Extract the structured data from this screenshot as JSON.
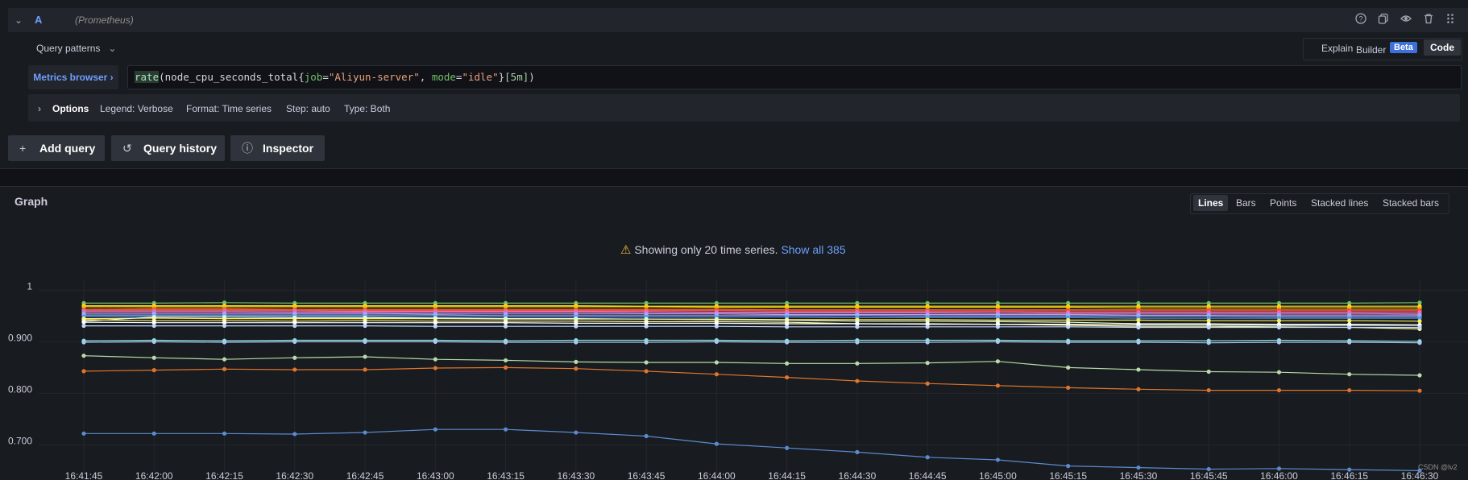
{
  "query": {
    "letter": "A",
    "datasource": "(Prometheus)",
    "row_icons": [
      "help-icon",
      "duplicate-icon",
      "eye-icon",
      "trash-icon",
      "drag-handle-icon"
    ],
    "patterns_label": "Query patterns",
    "mode": {
      "explain": "Explain",
      "builder": "Builder",
      "beta": "Beta",
      "code": "Code"
    },
    "metrics_browser": "Metrics browser",
    "expr": {
      "fn": "rate",
      "open": "(",
      "metric": "node_cpu_seconds_total",
      "brace_open": "{",
      "label1": "job",
      "eq1": "=",
      "val1": "\"Aliyun-server\"",
      "comma": ", ",
      "label2": "mode",
      "eq2": "=",
      "val2": "\"idle\"",
      "brace_close": "}",
      "range": "[5m]",
      "close": ")"
    },
    "options": {
      "title": "Options",
      "legend": "Legend: Verbose",
      "format": "Format: Time series",
      "step": "Step: auto",
      "type": "Type: Both"
    }
  },
  "buttons": {
    "add_query": "Add query",
    "query_history": "Query history",
    "inspector": "Inspector"
  },
  "graph": {
    "title": "Graph",
    "styles": [
      "Lines",
      "Bars",
      "Points",
      "Stacked lines",
      "Stacked bars"
    ],
    "selected_style": "Lines",
    "warning_text": "Showing only 20 time series.",
    "show_all": "Show all 385"
  },
  "watermark": "CSDN @lv2",
  "chart_data": {
    "type": "line",
    "x": [
      "16:41:45",
      "16:42:00",
      "16:42:15",
      "16:42:30",
      "16:42:45",
      "16:43:00",
      "16:43:15",
      "16:43:30",
      "16:43:45",
      "16:44:00",
      "16:44:15",
      "16:44:30",
      "16:44:45",
      "16:45:00",
      "16:45:15",
      "16:45:30",
      "16:45:45",
      "16:46:00",
      "16:46:15",
      "16:46:30"
    ],
    "y_ticks": [
      "1",
      "0.900",
      "0.800",
      "0.700"
    ],
    "ylim": [
      0.66,
      1.01
    ],
    "grid": true,
    "series": [
      {
        "color": "#73bf69",
        "values": [
          0.975,
          0.975,
          0.976,
          0.975,
          0.975,
          0.975,
          0.975,
          0.975,
          0.975,
          0.975,
          0.975,
          0.975,
          0.975,
          0.975,
          0.975,
          0.975,
          0.975,
          0.975,
          0.975,
          0.976
        ]
      },
      {
        "color": "#fade2a",
        "values": [
          0.97,
          0.97,
          0.97,
          0.97,
          0.97,
          0.97,
          0.97,
          0.97,
          0.969,
          0.969,
          0.969,
          0.969,
          0.969,
          0.969,
          0.969,
          0.969,
          0.969,
          0.969,
          0.969,
          0.969
        ]
      },
      {
        "color": "#f2cc0c",
        "values": [
          0.968,
          0.968,
          0.968,
          0.968,
          0.968,
          0.968,
          0.968,
          0.968,
          0.968,
          0.967,
          0.967,
          0.967,
          0.967,
          0.967,
          0.967,
          0.966,
          0.966,
          0.966,
          0.966,
          0.966
        ]
      },
      {
        "color": "#ff780a",
        "values": [
          0.963,
          0.964,
          0.964,
          0.963,
          0.963,
          0.963,
          0.963,
          0.963,
          0.963,
          0.963,
          0.962,
          0.962,
          0.962,
          0.962,
          0.962,
          0.962,
          0.962,
          0.962,
          0.962,
          0.962
        ]
      },
      {
        "color": "#f2495c",
        "values": [
          0.962,
          0.962,
          0.962,
          0.962,
          0.961,
          0.961,
          0.961,
          0.961,
          0.961,
          0.961,
          0.96,
          0.96,
          0.96,
          0.96,
          0.96,
          0.96,
          0.96,
          0.96,
          0.96,
          0.96
        ]
      },
      {
        "color": "#ff7383",
        "values": [
          0.96,
          0.96,
          0.96,
          0.96,
          0.959,
          0.959,
          0.959,
          0.959,
          0.959,
          0.958,
          0.958,
          0.958,
          0.958,
          0.958,
          0.957,
          0.957,
          0.957,
          0.957,
          0.957,
          0.957
        ]
      },
      {
        "color": "#b877d9",
        "values": [
          0.958,
          0.958,
          0.958,
          0.957,
          0.957,
          0.957,
          0.957,
          0.957,
          0.956,
          0.956,
          0.956,
          0.956,
          0.956,
          0.955,
          0.955,
          0.955,
          0.955,
          0.955,
          0.955,
          0.954
        ]
      },
      {
        "color": "#ca95e5",
        "values": [
          0.955,
          0.955,
          0.955,
          0.955,
          0.955,
          0.954,
          0.954,
          0.954,
          0.954,
          0.954,
          0.953,
          0.953,
          0.953,
          0.953,
          0.953,
          0.952,
          0.952,
          0.952,
          0.952,
          0.952
        ]
      },
      {
        "color": "#8ab8ff",
        "values": [
          0.952,
          0.952,
          0.952,
          0.952,
          0.952,
          0.952,
          0.951,
          0.951,
          0.951,
          0.951,
          0.951,
          0.951,
          0.95,
          0.95,
          0.95,
          0.95,
          0.95,
          0.949,
          0.949,
          0.949
        ]
      },
      {
        "color": "#5794f2",
        "values": [
          0.949,
          0.949,
          0.949,
          0.949,
          0.949,
          0.948,
          0.948,
          0.948,
          0.948,
          0.948,
          0.948,
          0.947,
          0.947,
          0.947,
          0.947,
          0.946,
          0.946,
          0.946,
          0.946,
          0.946
        ]
      },
      {
        "color": "#ffee52",
        "values": [
          0.945,
          0.946,
          0.945,
          0.945,
          0.945,
          0.945,
          0.944,
          0.944,
          0.944,
          0.944,
          0.943,
          0.943,
          0.943,
          0.942,
          0.942,
          0.942,
          0.941,
          0.941,
          0.941,
          0.94
        ]
      },
      {
        "color": "#e0f9d7",
        "values": [
          0.94,
          0.948,
          0.948,
          0.947,
          0.947,
          0.946,
          0.945,
          0.945,
          0.944,
          0.943,
          0.942,
          0.94,
          0.94,
          0.939,
          0.938,
          0.935,
          0.935,
          0.934,
          0.934,
          0.933
        ]
      },
      {
        "color": "#fff899",
        "values": [
          0.943,
          0.941,
          0.941,
          0.94,
          0.941,
          0.94,
          0.94,
          0.94,
          0.939,
          0.939,
          0.938,
          0.935,
          0.935,
          0.934,
          0.932,
          0.93,
          0.93,
          0.929,
          0.928,
          0.925
        ]
      },
      {
        "color": "#ffffff",
        "values": [
          0.938,
          0.937,
          0.937,
          0.937,
          0.937,
          0.937,
          0.937,
          0.936,
          0.936,
          0.936,
          0.935,
          0.935,
          0.934,
          0.934,
          0.934,
          0.933,
          0.933,
          0.932,
          0.932,
          0.932
        ]
      },
      {
        "color": "#c0d8ff",
        "values": [
          0.931,
          0.931,
          0.931,
          0.931,
          0.931,
          0.93,
          0.93,
          0.93,
          0.93,
          0.93,
          0.929,
          0.929,
          0.929,
          0.929,
          0.929,
          0.928,
          0.928,
          0.928,
          0.928,
          0.928
        ]
      },
      {
        "color": "#8bdfe0",
        "values": [
          0.902,
          0.903,
          0.902,
          0.903,
          0.903,
          0.903,
          0.902,
          0.903,
          0.903,
          0.903,
          0.902,
          0.903,
          0.903,
          0.903,
          0.902,
          0.902,
          0.902,
          0.903,
          0.902,
          0.901
        ]
      },
      {
        "color": "#aac7f2",
        "values": [
          0.899,
          0.9,
          0.899,
          0.9,
          0.9,
          0.9,
          0.899,
          0.899,
          0.899,
          0.9,
          0.899,
          0.899,
          0.899,
          0.9,
          0.899,
          0.899,
          0.898,
          0.899,
          0.899,
          0.898
        ]
      },
      {
        "color": "#b7dbab",
        "values": [
          0.873,
          0.869,
          0.866,
          0.869,
          0.871,
          0.866,
          0.864,
          0.861,
          0.86,
          0.86,
          0.858,
          0.858,
          0.859,
          0.862,
          0.85,
          0.846,
          0.842,
          0.841,
          0.837,
          0.835
        ]
      },
      {
        "color": "#e0752d",
        "values": [
          0.843,
          0.845,
          0.847,
          0.846,
          0.846,
          0.849,
          0.85,
          0.848,
          0.843,
          0.837,
          0.831,
          0.824,
          0.819,
          0.815,
          0.811,
          0.808,
          0.806,
          0.806,
          0.806,
          0.805
        ]
      },
      {
        "color": "#5a8bd1",
        "values": [
          0.722,
          0.722,
          0.722,
          0.721,
          0.724,
          0.73,
          0.73,
          0.724,
          0.717,
          0.702,
          0.694,
          0.686,
          0.676,
          0.671,
          0.659,
          0.656,
          0.653,
          0.654,
          0.652,
          0.65
        ]
      }
    ]
  }
}
